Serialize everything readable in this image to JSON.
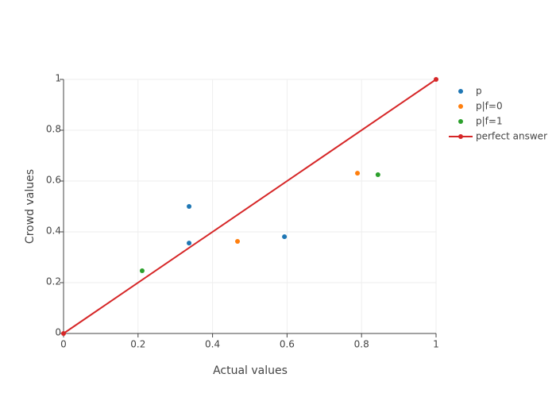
{
  "chart_data": {
    "type": "scatter",
    "x_label": "Actual values",
    "y_label": "Crowd values",
    "xlim": [
      0,
      1
    ],
    "ylim": [
      0,
      1
    ],
    "xticks": [
      0,
      0.2,
      0.4,
      0.6,
      0.8,
      1
    ],
    "yticks": [
      0,
      0.2,
      0.4,
      0.6,
      0.8,
      1
    ],
    "grid": true,
    "legend": "right",
    "series": [
      {
        "name": "p",
        "color": "#1f77b4",
        "mode": "markers",
        "x": [
          0.337,
          0.337,
          0.593
        ],
        "values": [
          0.5,
          0.356,
          0.381
        ]
      },
      {
        "name": "p|f=0",
        "color": "#ff7f0e",
        "mode": "markers",
        "x": [
          0.467,
          0.789
        ],
        "values": [
          0.3625,
          0.631
        ]
      },
      {
        "name": "p|f=1",
        "color": "#2ca02c",
        "mode": "markers",
        "x": [
          0.211,
          0.844
        ],
        "values": [
          0.247,
          0.625
        ]
      },
      {
        "name": "perfect answer",
        "color": "#d62728",
        "mode": "lines+markers",
        "x": [
          0,
          1
        ],
        "values": [
          0,
          1
        ]
      }
    ]
  }
}
